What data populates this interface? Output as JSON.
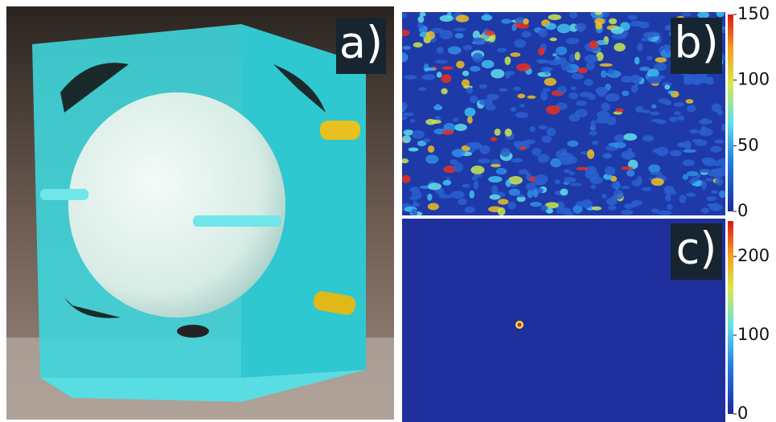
{
  "panels": [
    {
      "label": "a)"
    },
    {
      "label": "b)",
      "colorbar": {
        "lim": [
          0,
          150
        ],
        "ticks": [
          0,
          50,
          100,
          150
        ]
      }
    },
    {
      "label": "c)",
      "colorbar": {
        "lim": [
          0,
          245
        ],
        "ticks": [
          0,
          100,
          200
        ]
      }
    }
  ]
}
